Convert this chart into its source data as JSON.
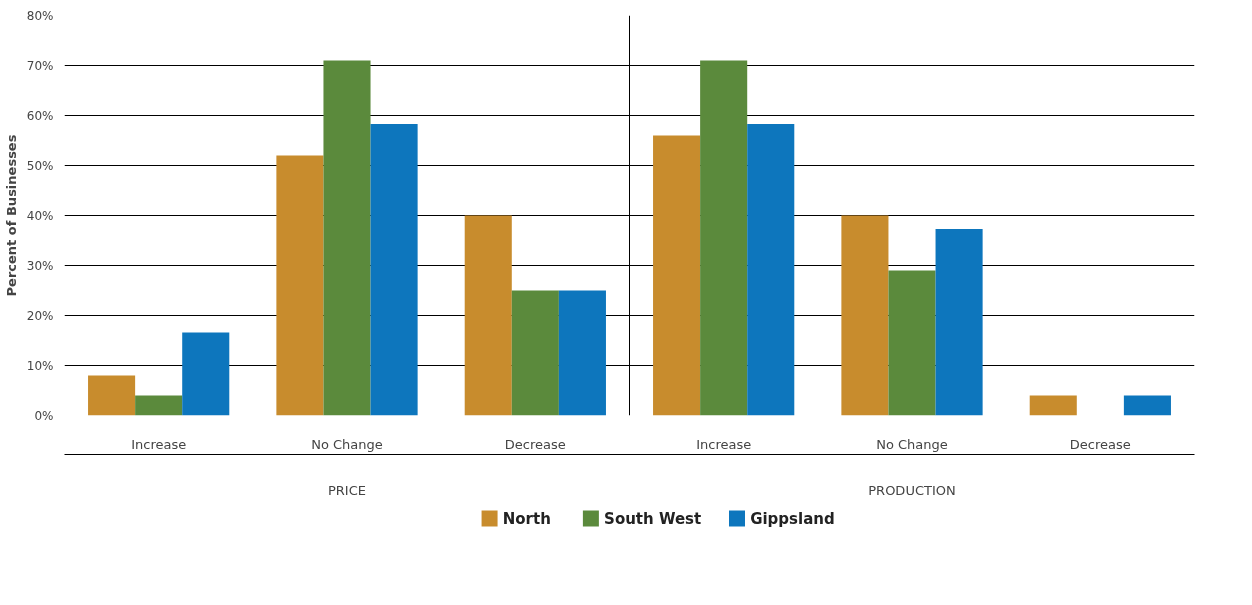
{
  "chart_data": {
    "type": "bar",
    "ylabel": "Percent of Businesses",
    "categories": [
      "Increase",
      "No Change",
      "Decrease",
      "Increase",
      "No Change",
      "Decrease"
    ],
    "annotations": [
      "PRICE",
      "PRODUCTION"
    ],
    "series": [
      {
        "name": "North",
        "color": "#c88c2d",
        "values": [
          8,
          52,
          40,
          56,
          40,
          4
        ]
      },
      {
        "name": "South West",
        "color": "#5b8a3c",
        "values": [
          4,
          71,
          25,
          71,
          29,
          0
        ]
      },
      {
        "name": "Gippsland",
        "color": "#0d76bd",
        "values": [
          16.6,
          58.3,
          25,
          58.3,
          37.3,
          4
        ]
      }
    ],
    "ylim": [
      0,
      80
    ],
    "yticks": [
      {
        "value": 0,
        "label": "0%"
      },
      {
        "value": 10,
        "label": "10%"
      },
      {
        "value": 20,
        "label": "20%"
      },
      {
        "value": 30,
        "label": "30%"
      },
      {
        "value": 40,
        "label": "40%"
      },
      {
        "value": 50,
        "label": "50%"
      },
      {
        "value": 60,
        "label": "60%"
      },
      {
        "value": 70,
        "label": "70%"
      },
      {
        "value": 80,
        "label": "80%"
      }
    ],
    "grid": "y",
    "legend": "bottom"
  }
}
